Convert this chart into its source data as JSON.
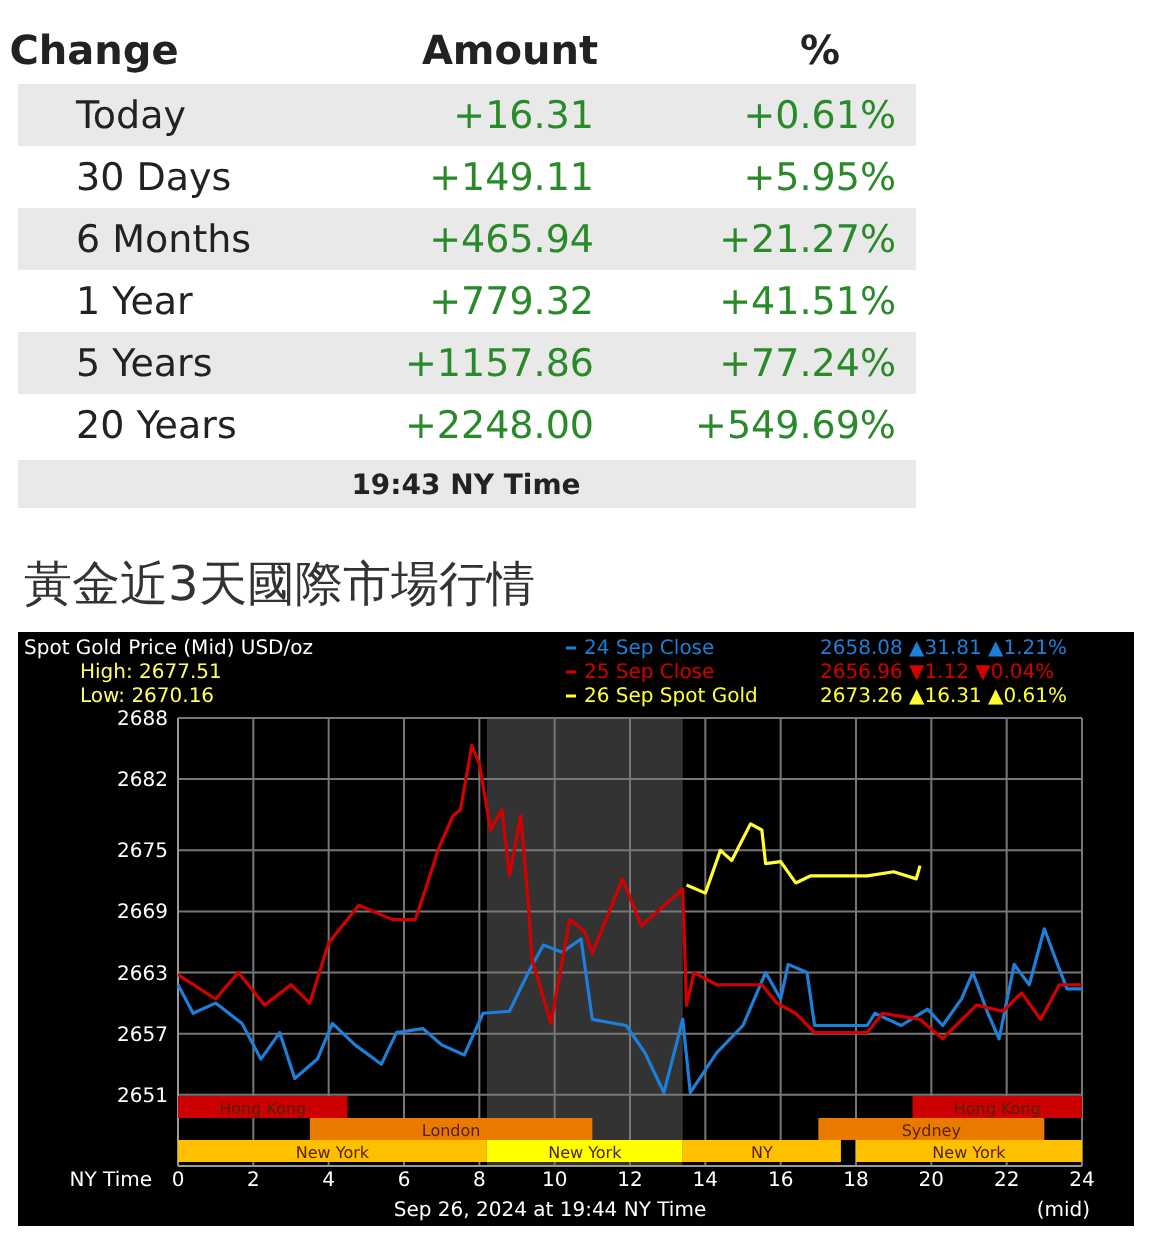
{
  "chart_data": [
    {
      "type": "other",
      "categories": [
        "Change",
        "Amount",
        "%"
      ],
      "y_categories": [
        "Today",
        "30 Days",
        "6 Months",
        "1 Year",
        "5 Years",
        "20 Years"
      ],
      "cell_labels": [
        [
          "+16.31",
          "+0.61%"
        ],
        [
          "+149.11",
          "+5.95%"
        ],
        [
          "+465.94",
          "+21.27%"
        ],
        [
          "+779.32",
          "+41.51%"
        ],
        [
          "+1157.86",
          "+77.24%"
        ],
        [
          "+2248.00",
          "+549.69%"
        ]
      ],
      "annotations": [
        "19:43 NY Time"
      ]
    },
    {
      "type": "line",
      "title": "黃金近3天國際市場行情",
      "subtitle": "Spot Gold Price (Mid) USD/oz",
      "xlabel": "NY Time",
      "xlim": [
        0,
        24
      ],
      "xticks": [
        0,
        2,
        4,
        6,
        8,
        10,
        12,
        14,
        16,
        18,
        20,
        22,
        24
      ],
      "ylim": [
        2644,
        2688
      ],
      "yticks": [
        2651,
        2657,
        2663,
        2669,
        2675,
        2682,
        2688
      ],
      "grid": true,
      "legend": "top right",
      "series": [
        {
          "name": "24 Sep Close",
          "color": "#1e7fd8",
          "x": [
            0,
            0.4,
            1.0,
            1.7,
            2.2,
            2.7,
            3.1,
            3.7,
            4.1,
            4.7,
            5.4,
            5.8,
            6.5,
            7.0,
            7.6,
            8.1,
            8.8,
            9.3,
            9.7,
            10.2,
            10.7,
            11.0,
            11.9,
            12.4,
            12.9,
            13.4,
            13.6,
            14.3,
            15.0,
            15.6,
            16.0,
            16.2,
            16.7,
            16.9,
            18.3,
            18.5,
            19.2,
            19.9,
            20.3,
            20.8,
            21.1,
            21.5,
            21.8,
            22.2,
            22.6,
            23.0,
            23.3,
            23.6,
            24
          ],
          "values": [
            2661.8,
            2659,
            2660,
            2658,
            2654.5,
            2657.1,
            2652.6,
            2654.5,
            2658,
            2655.9,
            2654,
            2657.1,
            2657.5,
            2655.9,
            2654.9,
            2659,
            2659.2,
            2663,
            2665.7,
            2665,
            2666.3,
            2658.4,
            2657.8,
            2655.1,
            2651.2,
            2658.4,
            2651.2,
            2655.1,
            2657.8,
            2663,
            2660.4,
            2663.8,
            2663,
            2657.8,
            2657.8,
            2659,
            2657.8,
            2659.4,
            2657.8,
            2660.4,
            2663,
            2659,
            2656.5,
            2663.8,
            2661.8,
            2667.3,
            2664.3,
            2661.4,
            2661.4
          ]
        },
        {
          "name": "25 Sep Close",
          "color": "#d40000",
          "x": [
            0,
            1.0,
            1.6,
            2.3,
            3.0,
            3.5,
            4.0,
            4.8,
            5.7,
            6.3,
            6.6,
            6.9,
            7.3,
            7.5,
            7.8,
            8.0,
            8.3,
            8.6,
            8.8,
            9.1,
            9.3,
            9.4,
            9.9,
            10.4,
            10.8,
            11.0,
            11.8,
            12.3,
            13.4,
            13.5,
            13.7,
            14.3,
            15.5,
            15.9,
            16.4,
            16.9,
            18.3,
            18.7,
            19.7,
            20.3,
            21.2,
            21.9,
            22.4,
            22.9,
            23.4,
            24
          ],
          "values": [
            2662.8,
            2660.4,
            2663,
            2659.8,
            2661.8,
            2660,
            2665.9,
            2669.6,
            2668.2,
            2668.2,
            2671.5,
            2675,
            2678.4,
            2679,
            2685.3,
            2683.5,
            2677,
            2679,
            2672.5,
            2678.4,
            2669.8,
            2664.3,
            2658,
            2668.2,
            2667,
            2664.9,
            2672.2,
            2667.6,
            2671.2,
            2659.8,
            2663,
            2661.8,
            2661.8,
            2660,
            2659,
            2657.1,
            2657.1,
            2659,
            2658.4,
            2656.5,
            2659.8,
            2659.2,
            2661,
            2658.4,
            2661.8,
            2661.8
          ]
        },
        {
          "name": "26 Sep Spot Gold",
          "color": "#ffff33",
          "x": [
            13.5,
            14.0,
            14.4,
            14.7,
            15.2,
            15.5,
            15.6,
            16.0,
            16.4,
            16.8,
            17.2,
            18.3,
            19.0,
            19.6,
            19.7
          ],
          "values": [
            2671.6,
            2670.8,
            2675,
            2674,
            2677.6,
            2677,
            2673.7,
            2673.9,
            2671.8,
            2672.5,
            2672.5,
            2672.5,
            2672.9,
            2672.2,
            2673.5
          ]
        }
      ],
      "bands": [
        {
          "axis": "x",
          "from": 8.2,
          "to": 13.4,
          "color": "#333333"
        },
        {
          "axis": "x",
          "from": 0,
          "to": 4.5,
          "label": "Hong Kong",
          "color": "#cc0000"
        },
        {
          "axis": "x",
          "from": 19.5,
          "to": 24,
          "label": "Hong Kong",
          "color": "#cc0000"
        },
        {
          "axis": "x",
          "from": 3.5,
          "to": 11,
          "label": "London",
          "color": "#e87a00"
        },
        {
          "axis": "x",
          "from": 17,
          "to": 23,
          "label": "Sydney",
          "color": "#e87a00"
        },
        {
          "axis": "x",
          "from": 0,
          "to": 8.2,
          "label": "New York",
          "color": "#ffc000"
        },
        {
          "axis": "x",
          "from": 8.2,
          "to": 13.4,
          "label": "New York",
          "color": "#ffff00"
        },
        {
          "axis": "x",
          "from": 13.4,
          "to": 17.6,
          "label": "NY",
          "color": "#ffc000"
        },
        {
          "axis": "x",
          "from": 18,
          "to": 24,
          "label": "New York",
          "color": "#ffc000"
        }
      ],
      "annotations": [
        "High: 2677.51",
        "Low: 2670.16",
        "2658.08  ▲31.81  ▲1.21%",
        "2656.96  ▼1.12  ▼0.04%",
        "2673.26  ▲16.31  ▲0.61%",
        "Sep 26, 2024 at 19:44 NY Time",
        "(mid)"
      ]
    }
  ]
}
